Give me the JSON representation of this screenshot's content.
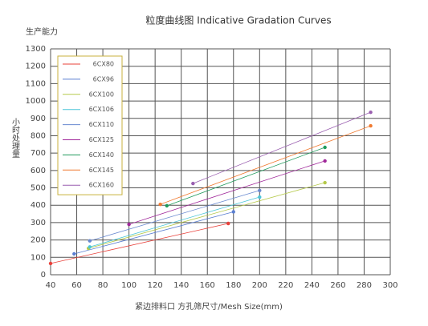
{
  "chart_data": {
    "type": "line",
    "title": "粒度曲线图 Indicative Gradation Curves",
    "y_unit_label": "生产能力",
    "ylabel": "小时处理量",
    "xlabel": "紧边排料口  方孔筛尺寸/Mesh Size(mm)",
    "xlim": [
      40,
      300
    ],
    "xticks": [
      40,
      60,
      80,
      100,
      120,
      140,
      160,
      180,
      200,
      220,
      240,
      260,
      280,
      300
    ],
    "ylim": [
      0,
      1300
    ],
    "yticks": [
      0,
      100,
      200,
      300,
      400,
      500,
      600,
      700,
      800,
      900,
      1000,
      1100,
      1200,
      1300
    ],
    "grid": true,
    "legend": "upper left",
    "series": [
      {
        "name": "6CX80",
        "color": "#e8403a",
        "x": [
          40,
          176
        ],
        "values": [
          65,
          295
        ]
      },
      {
        "name": "6CX96",
        "color": "#5b7fd1",
        "x": [
          58,
          180
        ],
        "values": [
          120,
          362
        ]
      },
      {
        "name": "6CX100",
        "color": "#b5c94a",
        "x": [
          69,
          250
        ],
        "values": [
          152,
          530
        ]
      },
      {
        "name": "6CX106",
        "color": "#4cc6d8",
        "x": [
          70,
          200
        ],
        "values": [
          160,
          447
        ]
      },
      {
        "name": "6CX110",
        "color": "#6a8ad0",
        "x": [
          70,
          200
        ],
        "values": [
          195,
          485
        ]
      },
      {
        "name": "6CX125",
        "color": "#a0289a",
        "x": [
          100,
          250
        ],
        "values": [
          290,
          655
        ]
      },
      {
        "name": "6CX140",
        "color": "#1e9a5a",
        "x": [
          129,
          250
        ],
        "values": [
          397,
          733
        ]
      },
      {
        "name": "6CX145",
        "color": "#f07a30",
        "x": [
          124,
          285
        ],
        "values": [
          405,
          857
        ]
      },
      {
        "name": "6CX160",
        "color": "#9a5fb0",
        "x": [
          149,
          285
        ],
        "values": [
          525,
          935
        ]
      }
    ]
  }
}
